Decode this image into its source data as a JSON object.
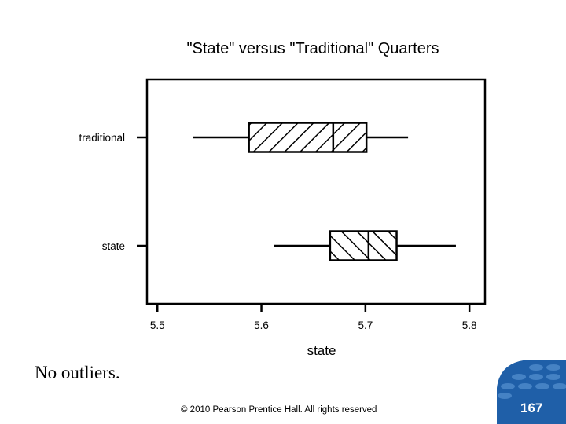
{
  "chart_data": {
    "type": "boxplot",
    "title": "\"State\" versus \"Traditional\" Quarters",
    "xlabel": "state",
    "ylabel": "",
    "xlim": [
      5.49,
      5.815
    ],
    "ticks": [
      "5.5",
      "5.6",
      "5.7",
      "5.8"
    ],
    "tick_values": [
      5.5,
      5.6,
      5.7,
      5.8
    ],
    "grid": false,
    "categories": [
      "traditional",
      "state"
    ],
    "boxes": [
      {
        "category": "traditional",
        "whisker_low": 5.534,
        "q1": 5.588,
        "median": 5.669,
        "q3": 5.701,
        "whisker_high": 5.741,
        "hatch": "forward"
      },
      {
        "category": "state",
        "whisker_low": 5.612,
        "q1": 5.666,
        "median": 5.703,
        "q3": 5.73,
        "whisker_high": 5.787,
        "hatch": "back"
      }
    ]
  },
  "note": "No outliers.",
  "footer": {
    "copyright": "© 2010 Pearson Prentice Hall. All rights reserved",
    "slide_number": "167"
  },
  "colors": {
    "ink": "#000000",
    "badge": "#1f5fa8",
    "badge_dot": "#4a86c8"
  }
}
